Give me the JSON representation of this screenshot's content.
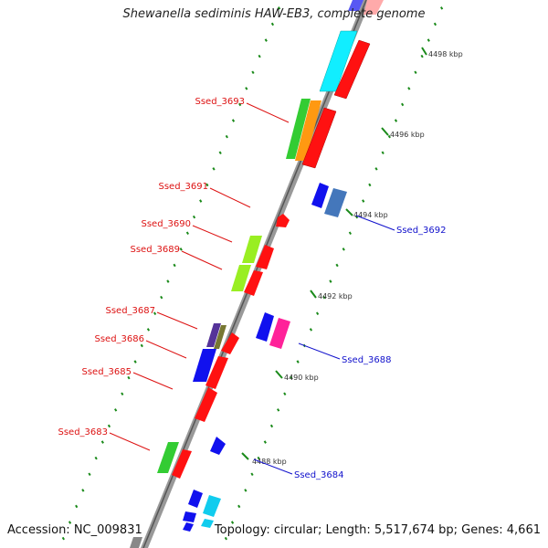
{
  "title": "Shewanella sediminis HAW-EB3, complete genome",
  "footer": {
    "accession": "Accession: NC_009831",
    "stats": "Topology: circular; Length: 5,517,674 bp; Genes: 4,661"
  },
  "scale_ticks": [
    "4498 kbp",
    "4496 kbp",
    "4494 kbp",
    "4492 kbp",
    "4490 kbp",
    "4488 kbp"
  ],
  "gene_labels": {
    "forward": [
      "Ssed_3693",
      "Ssed_3691",
      "Ssed_3690",
      "Ssed_3689",
      "Ssed_3687",
      "Ssed_3686",
      "Ssed_3685",
      "Ssed_3683"
    ],
    "reverse": [
      "Ssed_3692",
      "Ssed_3688",
      "Ssed_3684"
    ]
  },
  "colors": {
    "forward_label": "#dd1111",
    "reverse_label": "#1111cc",
    "backbone": "#888888",
    "tick": "#1a8a1a",
    "red": "#ff1111",
    "blue": "#1111ee",
    "cyan": "#11eeff",
    "green": "#33cc33",
    "lime": "#99ee22",
    "orange": "#ff9911",
    "steelblue": "#4477bb",
    "magenta": "#ff2299",
    "purple": "#553399",
    "olive": "#777733"
  }
}
